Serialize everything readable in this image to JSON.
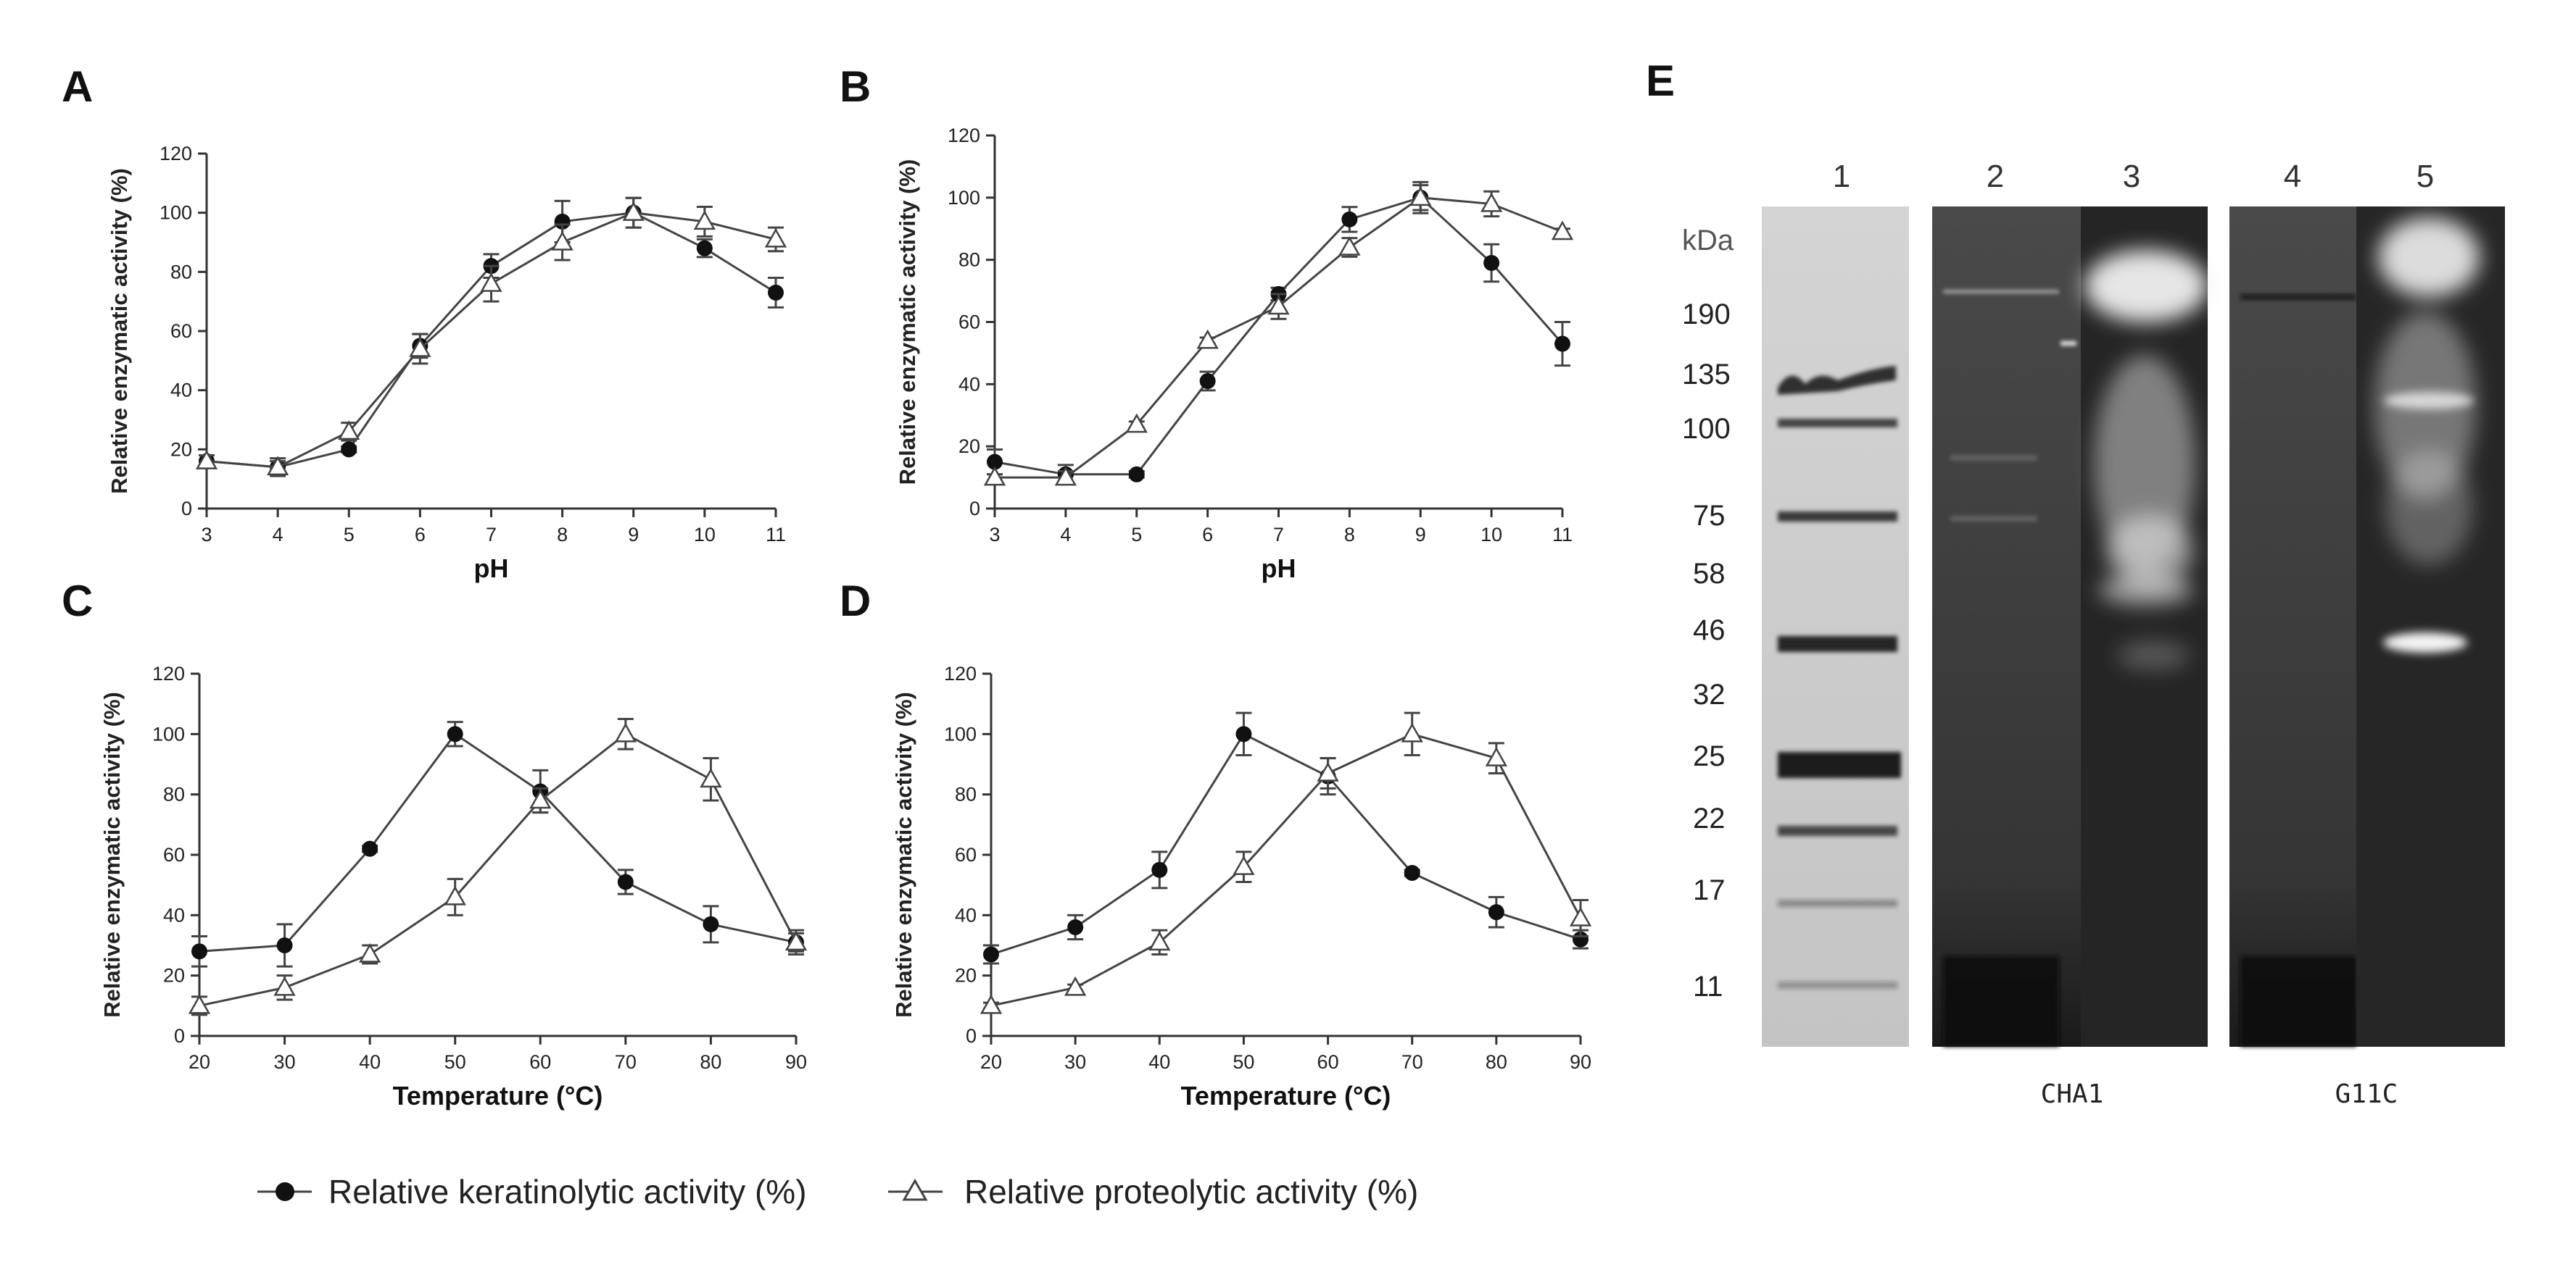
{
  "chart_data": [
    {
      "panel": "A",
      "type": "line",
      "ylabel": "Relative enzymatic activity (%)",
      "xlabel": "pH",
      "x": [
        3,
        4,
        5,
        6,
        7,
        8,
        9,
        10,
        11
      ],
      "xlim": [
        3,
        11
      ],
      "ylim": [
        0,
        120
      ],
      "xticks": [
        "3",
        "4",
        "5",
        "6",
        "7",
        "8",
        "9",
        "10",
        "11"
      ],
      "yticks": [
        "0",
        "20",
        "40",
        "60",
        "80",
        "100",
        "120"
      ],
      "series": [
        {
          "name": "Relative keratinolytic activity (%)",
          "marker": "filled-circle",
          "values": [
            16,
            14,
            20,
            55,
            82,
            97,
            100,
            88,
            73
          ],
          "errors": [
            2,
            3,
            1,
            4,
            4,
            7,
            5,
            3,
            5
          ]
        },
        {
          "name": "Relative proteolytic activity (%)",
          "marker": "open-triangle",
          "values": [
            16,
            14,
            26,
            54,
            76,
            90,
            100,
            97,
            91
          ],
          "errors": [
            2,
            2,
            3,
            5,
            6,
            6,
            5,
            5,
            4
          ]
        }
      ]
    },
    {
      "panel": "B",
      "type": "line",
      "ylabel": "Relative enzymatic activity (%)",
      "xlabel": "pH",
      "x": [
        3,
        4,
        5,
        6,
        7,
        8,
        9,
        10,
        11
      ],
      "xlim": [
        3,
        11
      ],
      "ylim": [
        0,
        120
      ],
      "xticks": [
        "3",
        "4",
        "5",
        "6",
        "7",
        "8",
        "9",
        "10",
        "11"
      ],
      "yticks": [
        "0",
        "20",
        "40",
        "60",
        "80",
        "100",
        "120"
      ],
      "series": [
        {
          "name": "Relative keratinolytic activity (%)",
          "marker": "filled-circle",
          "values": [
            15,
            11,
            11,
            41,
            69,
            93,
            100,
            79,
            53
          ],
          "errors": [
            4,
            3,
            1,
            3,
            2,
            4,
            5,
            6,
            7
          ]
        },
        {
          "name": "Relative proteolytic activity (%)",
          "marker": "open-triangle",
          "values": [
            10,
            10,
            27,
            54,
            65,
            84,
            100,
            98,
            89
          ],
          "errors": [
            1,
            2,
            1,
            1,
            4,
            3,
            4,
            4,
            1
          ]
        }
      ]
    },
    {
      "panel": "C",
      "type": "line",
      "ylabel": "Relative enzymatic activity (%)",
      "xlabel": "Temperature (°C)",
      "x": [
        20,
        30,
        40,
        50,
        60,
        70,
        80,
        90
      ],
      "xlim": [
        20,
        90
      ],
      "ylim": [
        0,
        120
      ],
      "xticks": [
        "20",
        "30",
        "40",
        "50",
        "60",
        "70",
        "80",
        "90"
      ],
      "yticks": [
        "0",
        "20",
        "40",
        "60",
        "80",
        "100",
        "120"
      ],
      "series": [
        {
          "name": "Relative keratinolytic activity (%)",
          "marker": "filled-circle",
          "values": [
            28,
            30,
            62,
            100,
            81,
            51,
            37,
            31
          ],
          "errors": [
            5,
            7,
            1,
            4,
            7,
            4,
            6,
            4
          ]
        },
        {
          "name": "Relative proteolytic activity (%)",
          "marker": "open-triangle",
          "values": [
            10,
            16,
            27,
            46,
            78,
            100,
            85,
            31
          ],
          "errors": [
            3,
            4,
            3,
            6,
            4,
            5,
            7,
            3
          ]
        }
      ]
    },
    {
      "panel": "D",
      "type": "line",
      "ylabel": "Relative enzymatic activity (%)",
      "xlabel": "Temperature (°C)",
      "x": [
        20,
        30,
        40,
        50,
        60,
        70,
        80,
        90
      ],
      "xlim": [
        20,
        90
      ],
      "ylim": [
        0,
        120
      ],
      "xticks": [
        "20",
        "30",
        "40",
        "50",
        "60",
        "70",
        "80",
        "90"
      ],
      "yticks": [
        "0",
        "20",
        "40",
        "60",
        "80",
        "100",
        "120"
      ],
      "series": [
        {
          "name": "Relative keratinolytic activity (%)",
          "marker": "filled-circle",
          "values": [
            27,
            36,
            55,
            100,
            86,
            54,
            41,
            32
          ],
          "errors": [
            3,
            4,
            6,
            7,
            6,
            1,
            5,
            3
          ]
        },
        {
          "name": "Relative proteolytic activity (%)",
          "marker": "open-triangle",
          "values": [
            10,
            16,
            31,
            56,
            87,
            100,
            92,
            39
          ],
          "errors": [
            1,
            1,
            4,
            5,
            5,
            7,
            5,
            6
          ]
        }
      ]
    }
  ],
  "legend": {
    "items": [
      {
        "label": "Relative keratinolytic activity (%)",
        "marker": "filled-circle"
      },
      {
        "label": "Relative proteolytic activity (%)",
        "marker": "open-triangle"
      }
    ],
    "placement": "bottom-center"
  },
  "gel": {
    "panel": "E",
    "lane_numbers": [
      "1",
      "2",
      "3",
      "4",
      "5"
    ],
    "unit_label": "kDa",
    "marker_labels": [
      "190",
      "135",
      "100",
      "75",
      "58",
      "46",
      "32",
      "25",
      "22",
      "17",
      "11"
    ],
    "strain_labels": [
      "CHA1",
      "G11C"
    ]
  },
  "colors": {
    "line": "#444444",
    "marker_fill": "#111111",
    "ladder_background": "#c9c9c9",
    "gel_background": "#3a3a3a",
    "zymogram_glow": "#f2f2f2"
  }
}
